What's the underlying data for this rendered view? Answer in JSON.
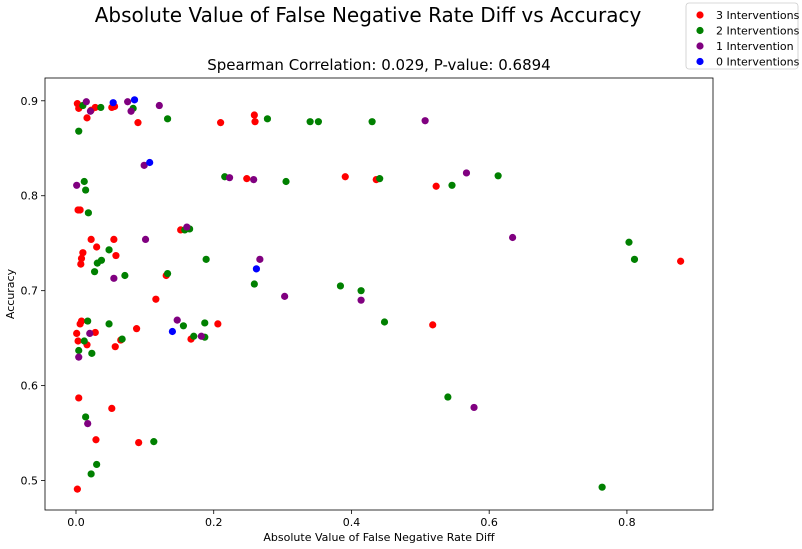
{
  "chart_data": {
    "type": "scatter",
    "title": "Absolute Value of False Negative Rate Diff vs Accuracy",
    "subtitle": "Spearman Correlation: 0.029, P-value: 0.6894",
    "xlabel": "Absolute Value of False Negative Rate Diff",
    "ylabel": "Accuracy",
    "xlim": [
      -0.045,
      0.925
    ],
    "ylim": [
      0.469,
      0.924
    ],
    "xticks": [
      0.0,
      0.2,
      0.4,
      0.6,
      0.8
    ],
    "xtick_labels": [
      "0.0",
      "0.2",
      "0.4",
      "0.6",
      "0.8"
    ],
    "yticks": [
      0.5,
      0.6,
      0.7,
      0.8,
      0.9
    ],
    "ytick_labels": [
      "0.5",
      "0.6",
      "0.7",
      "0.8",
      "0.9"
    ],
    "grid": false,
    "legend_position": "top-right",
    "series": [
      {
        "name": "3 Interventions",
        "color": "#ff0000",
        "points": [
          [
            0.002,
            0.897
          ],
          [
            0.004,
            0.892
          ],
          [
            0.016,
            0.882
          ],
          [
            0.022,
            0.89
          ],
          [
            0.028,
            0.893
          ],
          [
            0.052,
            0.893
          ],
          [
            0.056,
            0.894
          ],
          [
            0.09,
            0.877
          ],
          [
            0.21,
            0.877
          ],
          [
            0.259,
            0.885
          ],
          [
            0.26,
            0.878
          ],
          [
            0.248,
            0.818
          ],
          [
            0.391,
            0.82
          ],
          [
            0.436,
            0.817
          ],
          [
            0.523,
            0.81
          ],
          [
            0.003,
            0.785
          ],
          [
            0.006,
            0.785
          ],
          [
            0.01,
            0.74
          ],
          [
            0.008,
            0.734
          ],
          [
            0.007,
            0.728
          ],
          [
            0.022,
            0.754
          ],
          [
            0.03,
            0.746
          ],
          [
            0.055,
            0.754
          ],
          [
            0.058,
            0.737
          ],
          [
            0.152,
            0.764
          ],
          [
            0.131,
            0.716
          ],
          [
            0.116,
            0.691
          ],
          [
            0.878,
            0.731
          ],
          [
            0.001,
            0.655
          ],
          [
            0.006,
            0.665
          ],
          [
            0.008,
            0.668
          ],
          [
            0.003,
            0.647
          ],
          [
            0.016,
            0.643
          ],
          [
            0.028,
            0.656
          ],
          [
            0.057,
            0.641
          ],
          [
            0.065,
            0.648
          ],
          [
            0.088,
            0.66
          ],
          [
            0.167,
            0.649
          ],
          [
            0.206,
            0.665
          ],
          [
            0.518,
            0.664
          ],
          [
            0.004,
            0.587
          ],
          [
            0.052,
            0.576
          ],
          [
            0.029,
            0.543
          ],
          [
            0.091,
            0.54
          ],
          [
            0.002,
            0.491
          ]
        ]
      },
      {
        "name": "2 Interventions",
        "color": "#008000",
        "points": [
          [
            0.004,
            0.868
          ],
          [
            0.01,
            0.895
          ],
          [
            0.036,
            0.893
          ],
          [
            0.083,
            0.892
          ],
          [
            0.133,
            0.881
          ],
          [
            0.278,
            0.881
          ],
          [
            0.34,
            0.878
          ],
          [
            0.352,
            0.878
          ],
          [
            0.43,
            0.878
          ],
          [
            0.216,
            0.82
          ],
          [
            0.012,
            0.815
          ],
          [
            0.014,
            0.806
          ],
          [
            0.305,
            0.815
          ],
          [
            0.441,
            0.818
          ],
          [
            0.546,
            0.811
          ],
          [
            0.613,
            0.821
          ],
          [
            0.018,
            0.782
          ],
          [
            0.158,
            0.764
          ],
          [
            0.165,
            0.765
          ],
          [
            0.048,
            0.743
          ],
          [
            0.037,
            0.732
          ],
          [
            0.031,
            0.729
          ],
          [
            0.027,
            0.72
          ],
          [
            0.071,
            0.716
          ],
          [
            0.133,
            0.718
          ],
          [
            0.189,
            0.733
          ],
          [
            0.259,
            0.707
          ],
          [
            0.384,
            0.705
          ],
          [
            0.414,
            0.7
          ],
          [
            0.803,
            0.751
          ],
          [
            0.811,
            0.733
          ],
          [
            0.017,
            0.668
          ],
          [
            0.048,
            0.665
          ],
          [
            0.156,
            0.663
          ],
          [
            0.187,
            0.666
          ],
          [
            0.448,
            0.667
          ],
          [
            0.004,
            0.637
          ],
          [
            0.012,
            0.647
          ],
          [
            0.023,
            0.634
          ],
          [
            0.067,
            0.649
          ],
          [
            0.171,
            0.652
          ],
          [
            0.187,
            0.651
          ],
          [
            0.54,
            0.588
          ],
          [
            0.014,
            0.567
          ],
          [
            0.113,
            0.541
          ],
          [
            0.03,
            0.517
          ],
          [
            0.022,
            0.507
          ],
          [
            0.764,
            0.493
          ]
        ]
      },
      {
        "name": "1 Intervention",
        "color": "#800080",
        "points": [
          [
            0.015,
            0.899
          ],
          [
            0.021,
            0.889
          ],
          [
            0.075,
            0.899
          ],
          [
            0.08,
            0.889
          ],
          [
            0.121,
            0.895
          ],
          [
            0.507,
            0.879
          ],
          [
            0.099,
            0.832
          ],
          [
            0.001,
            0.811
          ],
          [
            0.223,
            0.819
          ],
          [
            0.258,
            0.817
          ],
          [
            0.567,
            0.824
          ],
          [
            0.101,
            0.754
          ],
          [
            0.161,
            0.767
          ],
          [
            0.267,
            0.733
          ],
          [
            0.055,
            0.713
          ],
          [
            0.634,
            0.756
          ],
          [
            0.147,
            0.669
          ],
          [
            0.303,
            0.694
          ],
          [
            0.414,
            0.69
          ],
          [
            0.02,
            0.655
          ],
          [
            0.004,
            0.63
          ],
          [
            0.182,
            0.652
          ],
          [
            0.017,
            0.56
          ],
          [
            0.578,
            0.577
          ]
        ]
      },
      {
        "name": "0 Interventions",
        "color": "#0000ff",
        "points": [
          [
            0.054,
            0.898
          ],
          [
            0.085,
            0.901
          ],
          [
            0.107,
            0.835
          ],
          [
            0.262,
            0.723
          ],
          [
            0.14,
            0.657
          ]
        ]
      }
    ]
  }
}
